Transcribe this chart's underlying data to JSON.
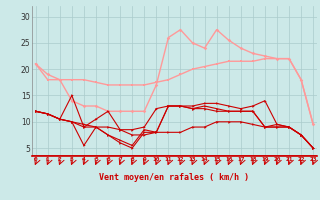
{
  "x": [
    0,
    1,
    2,
    3,
    4,
    5,
    6,
    7,
    8,
    9,
    10,
    11,
    12,
    13,
    14,
    15,
    16,
    17,
    18,
    19,
    20,
    21,
    22,
    23
  ],
  "line1": [
    21.0,
    18.0,
    18.0,
    18.0,
    18.0,
    17.5,
    17.0,
    17.0,
    17.0,
    17.0,
    17.5,
    18.0,
    19.0,
    20.0,
    20.5,
    21.0,
    21.5,
    21.5,
    21.5,
    22.0,
    22.0,
    22.0,
    18.0,
    9.5
  ],
  "line2": [
    21.0,
    19.0,
    18.0,
    14.0,
    13.0,
    13.0,
    12.0,
    12.0,
    12.0,
    12.0,
    17.0,
    26.0,
    27.5,
    25.0,
    24.0,
    27.5,
    25.5,
    24.0,
    23.0,
    22.5,
    22.0,
    22.0,
    18.0,
    9.5
  ],
  "line3": [
    12.0,
    11.5,
    10.5,
    10.0,
    9.0,
    9.0,
    9.0,
    8.5,
    8.5,
    9.0,
    12.5,
    13.0,
    13.0,
    13.0,
    13.5,
    13.5,
    13.0,
    12.5,
    13.0,
    14.0,
    9.5,
    9.0,
    7.5,
    5.0
  ],
  "line4": [
    12.0,
    11.5,
    10.5,
    10.0,
    9.5,
    9.0,
    7.5,
    6.5,
    5.5,
    8.5,
    8.0,
    13.0,
    13.0,
    12.5,
    13.0,
    12.5,
    12.0,
    12.0,
    12.0,
    9.0,
    9.5,
    9.0,
    7.5,
    5.0
  ],
  "line5": [
    12.0,
    11.5,
    10.5,
    10.0,
    5.5,
    9.0,
    7.5,
    6.0,
    5.0,
    8.0,
    8.0,
    8.0,
    8.0,
    9.0,
    9.0,
    10.0,
    10.0,
    10.0,
    9.5,
    9.0,
    9.0,
    9.0,
    7.5,
    5.0
  ],
  "line6": [
    12.0,
    11.5,
    10.5,
    15.0,
    9.0,
    10.5,
    12.0,
    8.5,
    7.5,
    7.5,
    8.0,
    13.0,
    13.0,
    12.5,
    12.5,
    12.0,
    12.0,
    12.0,
    12.0,
    9.0,
    9.0,
    9.0,
    7.5,
    5.0
  ],
  "bg_color": "#cce9e8",
  "grid_color": "#aacccc",
  "line1_color": "#ff9999",
  "line2_color": "#ff9999",
  "line3_color": "#cc0000",
  "line4_color": "#cc0000",
  "line5_color": "#cc0000",
  "line6_color": "#cc0000",
  "xlabel": "Vent moyen/en rafales ( km/h )",
  "yticks": [
    5,
    10,
    15,
    20,
    25,
    30
  ],
  "xticks": [
    0,
    1,
    2,
    3,
    4,
    5,
    6,
    7,
    8,
    9,
    10,
    11,
    12,
    13,
    14,
    15,
    16,
    17,
    18,
    19,
    20,
    21,
    22,
    23
  ],
  "ylim": [
    3.5,
    32
  ],
  "xlim": [
    -0.3,
    23.3
  ]
}
